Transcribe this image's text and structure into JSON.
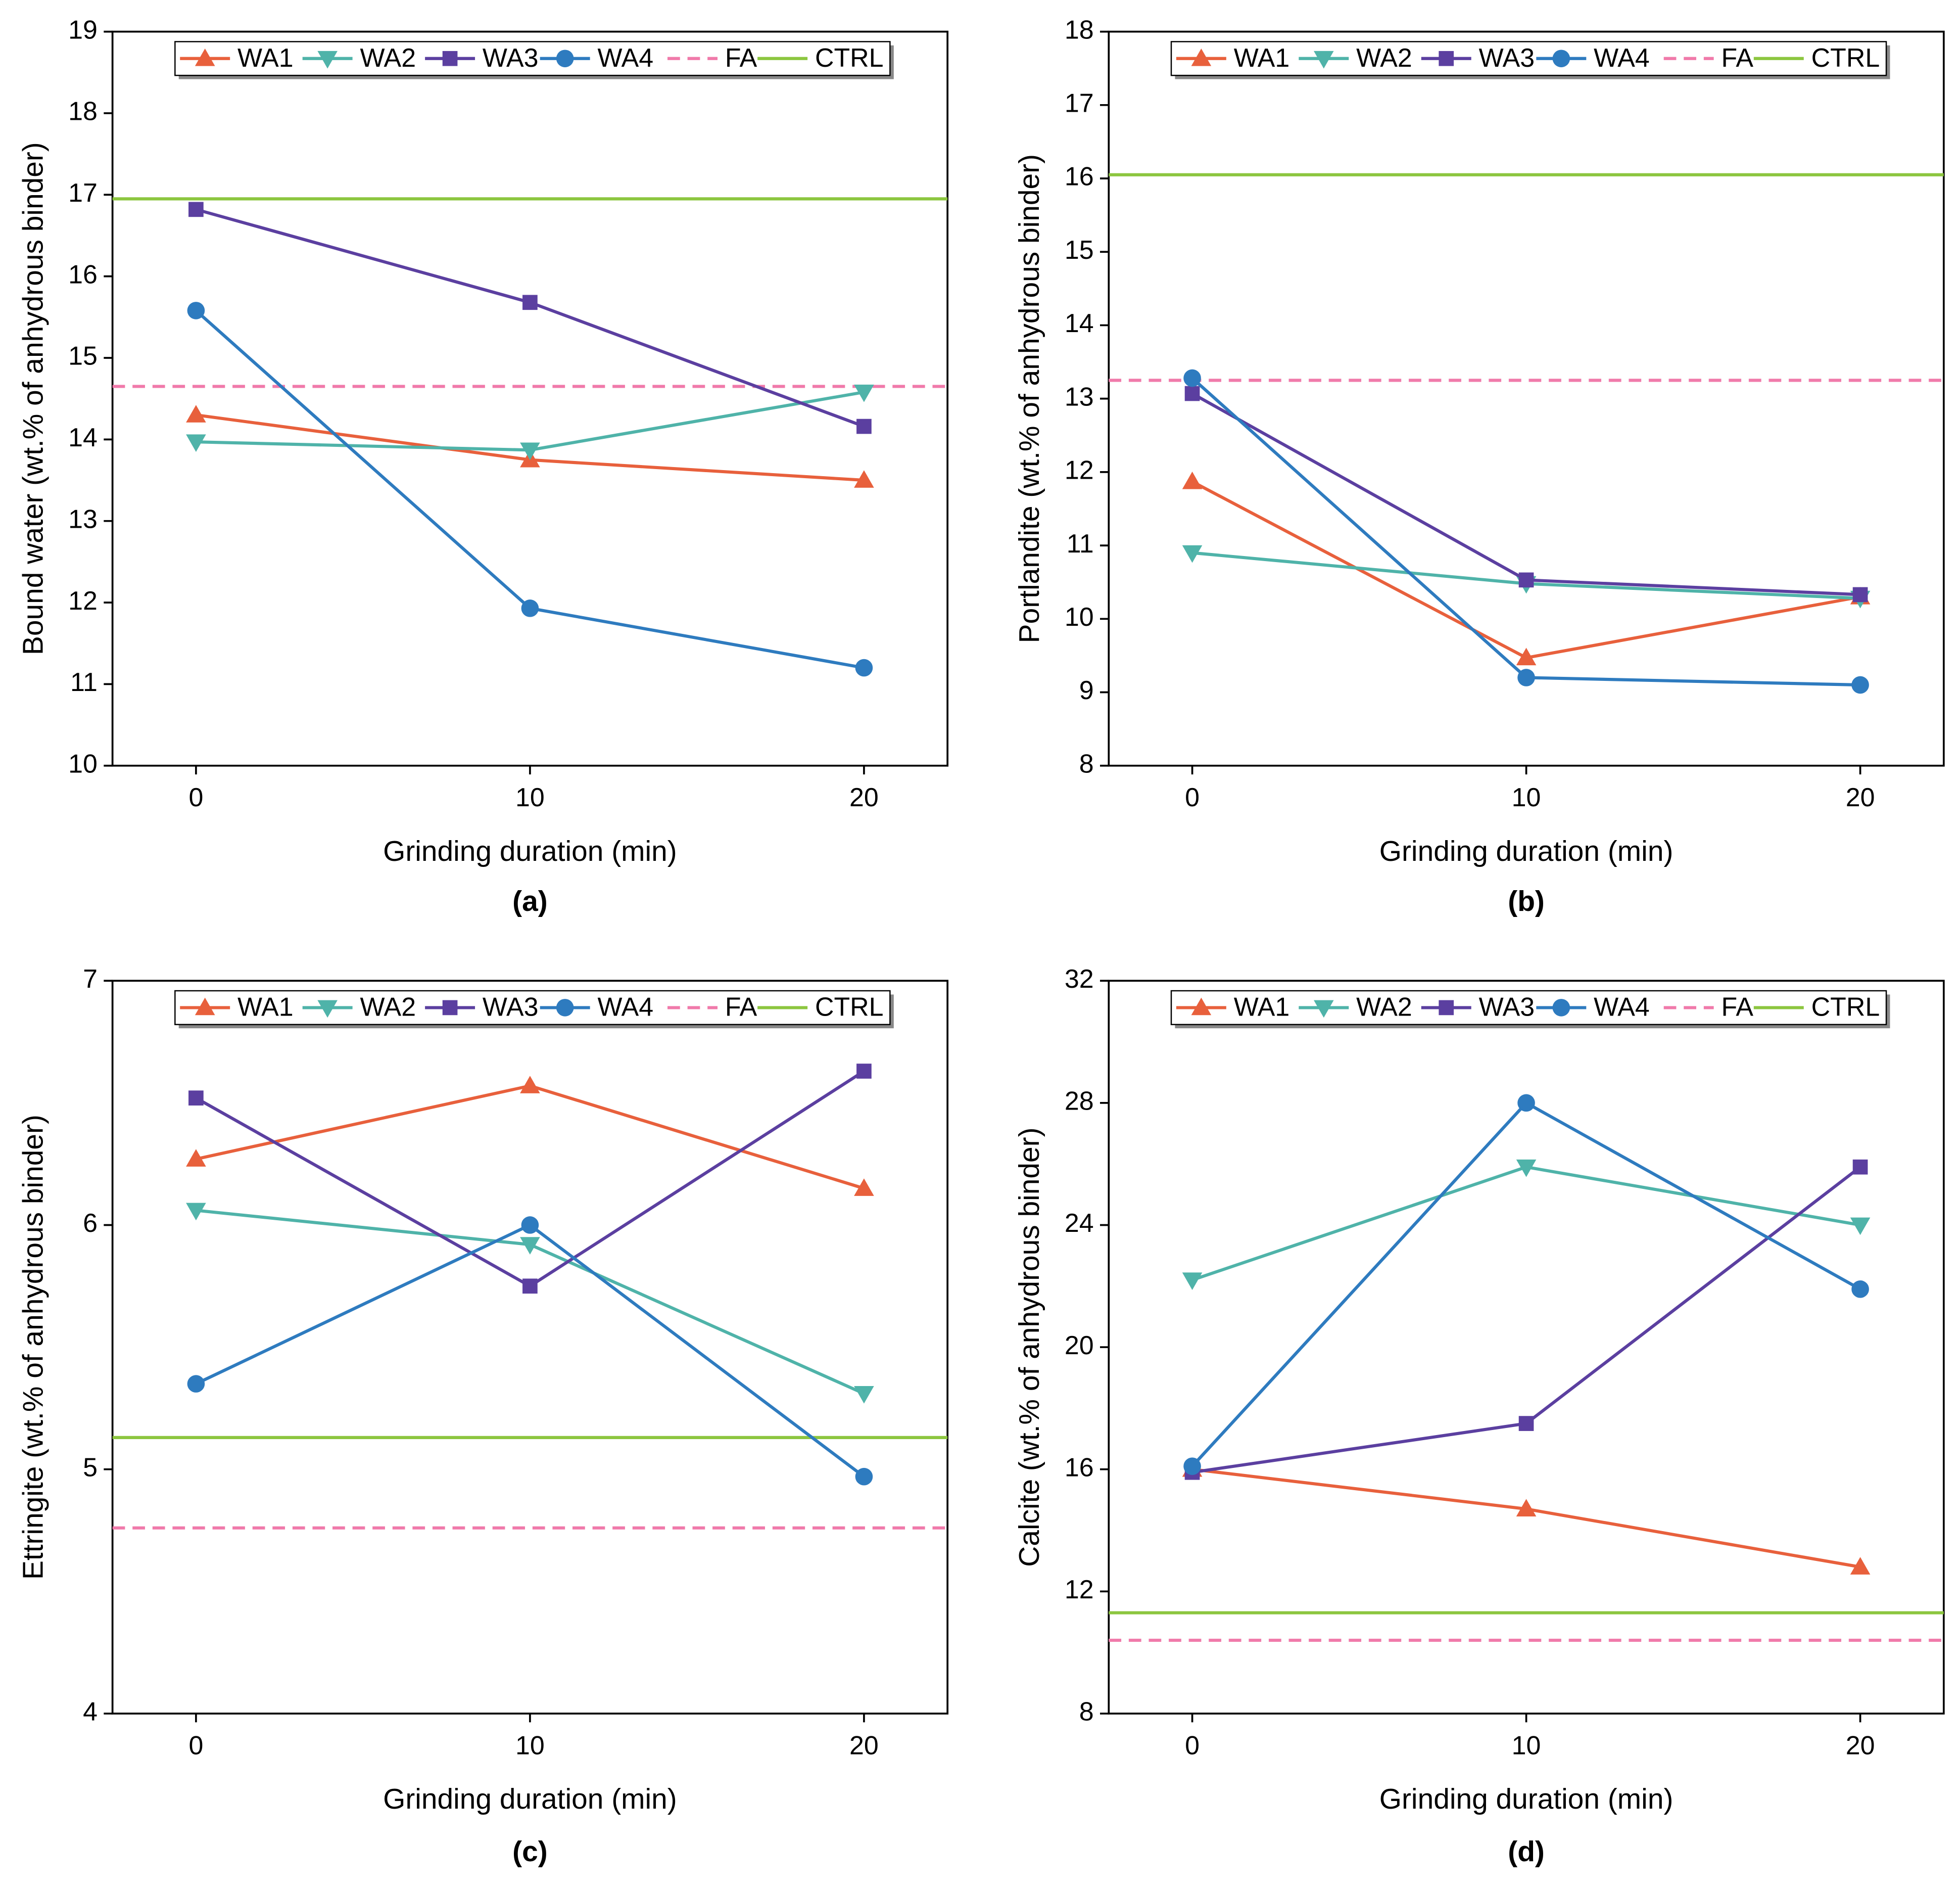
{
  "chart_data": [
    {
      "type": "line",
      "caption": "(a)",
      "xlabel": "Grinding duration (min)",
      "ylabel": "Bound water (wt.% of anhydrous binder)",
      "x": [
        0,
        10,
        20
      ],
      "xlim": [
        -2.5,
        22.5
      ],
      "xticks": [
        0,
        10,
        20
      ],
      "ylim": [
        10,
        19
      ],
      "yticks": [
        10,
        11,
        12,
        13,
        14,
        15,
        16,
        17,
        18,
        19
      ],
      "series": [
        {
          "name": "WA1",
          "color": "#e8603c",
          "marker": "triangle-up",
          "values": [
            14.3,
            13.75,
            13.5
          ]
        },
        {
          "name": "WA2",
          "color": "#4fb3a9",
          "marker": "triangle-down",
          "values": [
            13.97,
            13.87,
            14.58
          ]
        },
        {
          "name": "WA3",
          "color": "#5b3fa0",
          "marker": "square",
          "values": [
            16.82,
            15.68,
            14.16
          ]
        },
        {
          "name": "WA4",
          "color": "#2e7bbf",
          "marker": "circle",
          "values": [
            15.58,
            11.93,
            11.2
          ]
        }
      ],
      "reference_lines": [
        {
          "name": "FA",
          "color": "#f07aaa",
          "dashed": true,
          "value": 14.65
        },
        {
          "name": "CTRL",
          "color": "#8cc63f",
          "dashed": false,
          "value": 16.95
        }
      ]
    },
    {
      "type": "line",
      "caption": "(b)",
      "xlabel": "Grinding duration (min)",
      "ylabel": "Portlandite (wt.% of anhydrous binder)",
      "x": [
        0,
        10,
        20
      ],
      "xlim": [
        -2.5,
        22.5
      ],
      "xticks": [
        0,
        10,
        20
      ],
      "ylim": [
        8,
        18
      ],
      "yticks": [
        8,
        9,
        10,
        11,
        12,
        13,
        14,
        15,
        16,
        17,
        18
      ],
      "series": [
        {
          "name": "WA1",
          "color": "#e8603c",
          "marker": "triangle-up",
          "values": [
            11.87,
            9.47,
            10.3
          ]
        },
        {
          "name": "WA2",
          "color": "#4fb3a9",
          "marker": "triangle-down",
          "values": [
            10.9,
            10.48,
            10.28
          ]
        },
        {
          "name": "WA3",
          "color": "#5b3fa0",
          "marker": "square",
          "values": [
            13.07,
            10.53,
            10.33
          ]
        },
        {
          "name": "WA4",
          "color": "#2e7bbf",
          "marker": "circle",
          "values": [
            13.28,
            9.2,
            9.1
          ]
        }
      ],
      "reference_lines": [
        {
          "name": "FA",
          "color": "#f07aaa",
          "dashed": true,
          "value": 13.25
        },
        {
          "name": "CTRL",
          "color": "#8cc63f",
          "dashed": false,
          "value": 16.05
        }
      ]
    },
    {
      "type": "line",
      "caption": "(c)",
      "xlabel": "Grinding duration (min)",
      "ylabel": "Ettringite (wt.% of anhydrous binder)",
      "x": [
        0,
        10,
        20
      ],
      "xlim": [
        -2.5,
        22.5
      ],
      "xticks": [
        0,
        10,
        20
      ],
      "ylim": [
        4,
        7
      ],
      "yticks": [
        4,
        5,
        6,
        7
      ],
      "series": [
        {
          "name": "WA1",
          "color": "#e8603c",
          "marker": "triangle-up",
          "values": [
            6.27,
            6.57,
            6.15
          ]
        },
        {
          "name": "WA2",
          "color": "#4fb3a9",
          "marker": "triangle-down",
          "values": [
            6.06,
            5.92,
            5.31
          ]
        },
        {
          "name": "WA3",
          "color": "#5b3fa0",
          "marker": "square",
          "values": [
            6.52,
            5.75,
            6.63
          ]
        },
        {
          "name": "WA4",
          "color": "#2e7bbf",
          "marker": "circle",
          "values": [
            5.35,
            6.0,
            4.97
          ]
        }
      ],
      "reference_lines": [
        {
          "name": "FA",
          "color": "#f07aaa",
          "dashed": true,
          "value": 4.76
        },
        {
          "name": "CTRL",
          "color": "#8cc63f",
          "dashed": false,
          "value": 5.13
        }
      ]
    },
    {
      "type": "line",
      "caption": "(d)",
      "xlabel": "Grinding duration (min)",
      "ylabel": "Calcite (wt.% of anhydrous binder)",
      "x": [
        0,
        10,
        20
      ],
      "xlim": [
        -2.5,
        22.5
      ],
      "xticks": [
        0,
        10,
        20
      ],
      "ylim": [
        8,
        32
      ],
      "yticks": [
        8,
        12,
        16,
        20,
        24,
        28,
        32
      ],
      "series": [
        {
          "name": "WA1",
          "color": "#e8603c",
          "marker": "triangle-up",
          "values": [
            16.0,
            14.7,
            12.8
          ]
        },
        {
          "name": "WA2",
          "color": "#4fb3a9",
          "marker": "triangle-down",
          "values": [
            22.2,
            25.9,
            24.0
          ]
        },
        {
          "name": "WA3",
          "color": "#5b3fa0",
          "marker": "square",
          "values": [
            15.9,
            17.5,
            25.9
          ]
        },
        {
          "name": "WA4",
          "color": "#2e7bbf",
          "marker": "circle",
          "values": [
            16.1,
            28.0,
            21.9
          ]
        }
      ],
      "reference_lines": [
        {
          "name": "FA",
          "color": "#f07aaa",
          "dashed": true,
          "value": 10.4
        },
        {
          "name": "CTRL",
          "color": "#8cc63f",
          "dashed": false,
          "value": 11.3
        }
      ]
    }
  ]
}
